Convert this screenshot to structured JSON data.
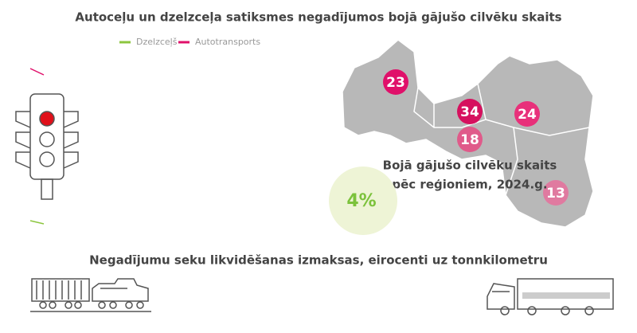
{
  "title": "Autoceļu un dzelzceļa satiksmes negadījumos bojā gājušo cilvēku skaits",
  "legend": [
    {
      "label": "Dzelzceļš",
      "color": "#8cc63f"
    },
    {
      "label": "Autotransports",
      "color": "#e0106a"
    }
  ],
  "map": {
    "caption": [
      "Bojā gājušo cilvēku skaits",
      "pēc reģioniem, 2024.g."
    ],
    "regions": [
      23,
      34,
      24,
      18,
      13
    ]
  },
  "share": "4%",
  "subtitle": "Negadījumu seku likvidēšanas izmaksas, eirocenti uz tonnkilometru"
}
